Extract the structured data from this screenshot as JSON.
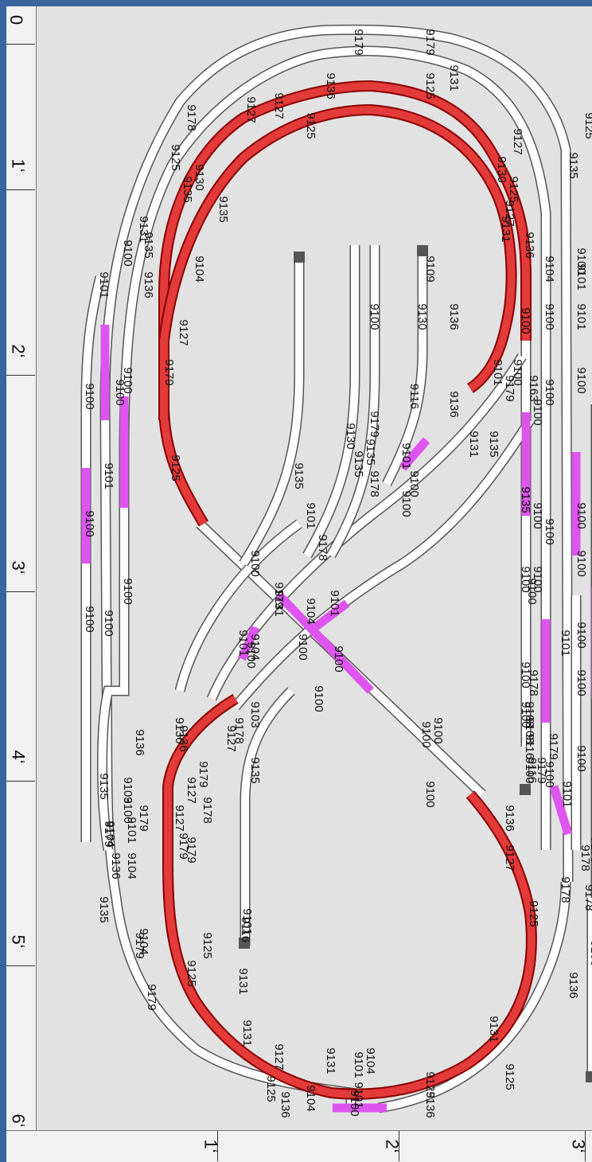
{
  "ruler_x": [
    "0",
    "1‘",
    "2‘",
    "3‘",
    "4‘",
    "5‘",
    "6‘"
  ],
  "ruler_y": [
    "1‘",
    "2‘",
    "3‘"
  ],
  "colors": {
    "canvas": "#e2e2e2",
    "rail": "#ffffff",
    "red": "#e33a3a",
    "magenta": "#dd55ee",
    "frame": "#3a64a0"
  },
  "labels": [
    "9125",
    "9136",
    "9104",
    "9101",
    "9136",
    "9125",
    "9125",
    "9131",
    "9127",
    "9131",
    "9104",
    "9131",
    "9125",
    "9179",
    "9125",
    "9131",
    "9125",
    "9127",
    "9136",
    "9179",
    "9135",
    "9179",
    "9104",
    "9101",
    "9136",
    "9116",
    "9179",
    "9178",
    "9136",
    "9100",
    "9103",
    "9127",
    "9127",
    "9179",
    "9135",
    "9136",
    "9100",
    "9103",
    "9127",
    "9178",
    "9179",
    "9100",
    "9100",
    "9100",
    "9100",
    "9100",
    "9100",
    "9101",
    "9104",
    "9179",
    "9178",
    "9100",
    "9104",
    "9101",
    "9100",
    "9100",
    "9179",
    "9136",
    "9100",
    "9100",
    "9135",
    "9100",
    "9101",
    "9178",
    "9130",
    "9135",
    "9178",
    "9100",
    "9101",
    "9136",
    "9135",
    "9131",
    "9179",
    "9163",
    "9100",
    "9100",
    "9100",
    "9100",
    "9100",
    "9100",
    "9100",
    "9100",
    "9100",
    "9100",
    "9103",
    "9116",
    "9178",
    "9179",
    "9101",
    "9178",
    "9179",
    "9178",
    "9136",
    "9100",
    "9116",
    "9100",
    "9100",
    "9100",
    "9101",
    "9100",
    "9179",
    "9135",
    "9104",
    "9101",
    "9136",
    "9135",
    "9131",
    "9101",
    "9100",
    "9104",
    "9101",
    "9103",
    "9136",
    "9125",
    "9179",
    "9127",
    "9130",
    "9135",
    "9125",
    "9127",
    "9178",
    "9135",
    "9104",
    "9125",
    "9127",
    "9136",
    "9179",
    "9179",
    "9125",
    "9131",
    "9127",
    "9125",
    "9131",
    "9130",
    "9127",
    "9135",
    "9125",
    "9136",
    "9100",
    "9101",
    "9100",
    "9100",
    "9116",
    "9100",
    "9100",
    "9109",
    "9116",
    "9130",
    "9135",
    "9179",
    "9131",
    "9101",
    "9100",
    "9100",
    "9135",
    "9100",
    "9100",
    "9100",
    "9100",
    "9100",
    "9100",
    "9101",
    "9104",
    "9101",
    "9100",
    "9100",
    "9100"
  ]
}
